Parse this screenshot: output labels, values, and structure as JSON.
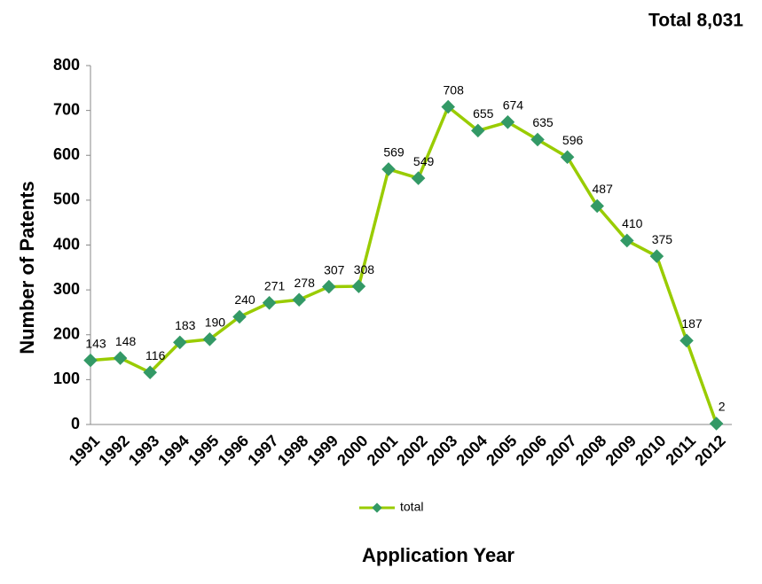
{
  "chart_data": {
    "type": "line",
    "title": "Total 8,031",
    "x_label": "Application Year",
    "y_label": "Number of Patents",
    "categories": [
      "1991",
      "1992",
      "1993",
      "1994",
      "1995",
      "1996",
      "1997",
      "1998",
      "1999",
      "2000",
      "2001",
      "2002",
      "2003",
      "2004",
      "2005",
      "2006",
      "2007",
      "2008",
      "2009",
      "2010",
      "2011",
      "2012"
    ],
    "series": [
      {
        "name": "total",
        "color": "#99cc00",
        "marker_color": "#339966",
        "values": [
          143,
          148,
          116,
          183,
          190,
          240,
          271,
          278,
          307,
          308,
          569,
          549,
          708,
          655,
          674,
          635,
          596,
          487,
          410,
          375,
          187,
          2
        ]
      }
    ],
    "ylim": [
      0,
      800
    ],
    "yticks": [
      0,
      100,
      200,
      300,
      400,
      500,
      600,
      700,
      800
    ],
    "grid": false,
    "legend": "bottom"
  }
}
